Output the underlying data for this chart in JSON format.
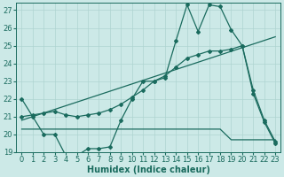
{
  "xlabel": "Humidex (Indice chaleur)",
  "bg_color": "#cce9e7",
  "line_color": "#1a6b5e",
  "grid_color": "#aed4d1",
  "xlim": [
    -0.5,
    23.5
  ],
  "ylim": [
    19,
    27.4
  ],
  "xticks": [
    0,
    1,
    2,
    3,
    4,
    5,
    6,
    7,
    8,
    9,
    10,
    11,
    12,
    13,
    14,
    15,
    16,
    17,
    18,
    19,
    20,
    21,
    22,
    23
  ],
  "yticks": [
    19,
    20,
    21,
    22,
    23,
    24,
    25,
    26,
    27
  ],
  "line1_x": [
    0,
    1,
    2,
    3,
    4,
    5,
    6,
    7,
    8,
    9,
    10,
    11,
    12,
    13,
    14,
    15,
    16,
    17,
    18,
    19,
    20,
    21,
    22,
    23
  ],
  "line1_y": [
    22.0,
    21.0,
    20.0,
    20.0,
    18.8,
    18.8,
    19.2,
    19.2,
    19.3,
    20.8,
    22.0,
    23.0,
    23.0,
    23.2,
    25.3,
    27.3,
    25.8,
    27.3,
    27.2,
    25.9,
    25.0,
    22.3,
    20.7,
    19.5
  ],
  "line2_x": [
    0,
    1,
    2,
    3,
    4,
    5,
    6,
    7,
    8,
    9,
    10,
    11,
    12,
    13,
    14,
    15,
    16,
    17,
    18,
    19,
    20,
    21,
    22,
    23
  ],
  "line2_y": [
    21.0,
    21.1,
    21.2,
    21.3,
    21.1,
    21.0,
    21.1,
    21.2,
    21.4,
    21.7,
    22.1,
    22.5,
    23.0,
    23.3,
    23.8,
    24.3,
    24.5,
    24.7,
    24.7,
    24.8,
    25.0,
    22.5,
    20.8,
    19.6
  ],
  "line3_x": [
    0,
    1,
    2,
    3,
    4,
    5,
    6,
    7,
    8,
    9,
    10,
    11,
    12,
    13,
    14,
    15,
    16,
    17,
    18,
    19,
    20,
    21,
    22,
    23
  ],
  "line3_y": [
    20.3,
    20.3,
    20.3,
    20.3,
    20.3,
    20.3,
    20.3,
    20.3,
    20.3,
    20.3,
    20.3,
    20.3,
    20.3,
    20.3,
    20.3,
    20.3,
    20.3,
    20.3,
    20.3,
    19.7,
    19.7,
    19.7,
    19.7,
    19.7
  ],
  "trend_x": [
    0,
    23
  ],
  "trend_y": [
    20.8,
    25.5
  ],
  "xlabel_fontsize": 7,
  "tick_fontsize": 6
}
